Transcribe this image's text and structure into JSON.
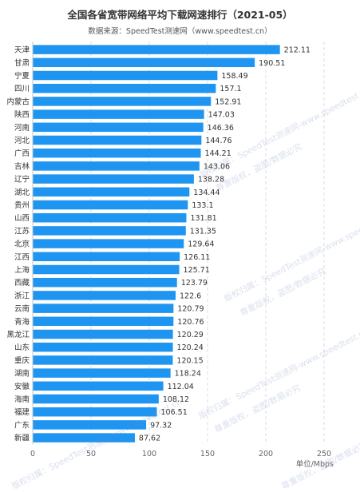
{
  "colors": {
    "bar": "#1f95f2",
    "grid": "#d9dde3",
    "text": "#333333",
    "axis": "#666666"
  },
  "watermark": {
    "line1": "版权归属：SpeedTest测速网-www.speedtest.cn",
    "line2": "尊重版权，盗图/数据必究"
  },
  "chart_data": {
    "type": "bar",
    "orientation": "horizontal",
    "title": "全国各省宽带网络平均下载网速排行（2021-05）",
    "subtitle": "数据来源：SpeedTest测速网（www.speedtest.cn）",
    "xlabel": "单位/Mbps",
    "ylabel": "",
    "xlim": [
      0,
      250
    ],
    "xticks": [
      0,
      50,
      100,
      150,
      200,
      250
    ],
    "grid": true,
    "categories": [
      "天津",
      "甘肃",
      "宁夏",
      "四川",
      "内蒙古",
      "陕西",
      "河南",
      "河北",
      "广西",
      "吉林",
      "辽宁",
      "湖北",
      "贵州",
      "山西",
      "江苏",
      "北京",
      "江西",
      "上海",
      "西藏",
      "浙江",
      "云南",
      "青海",
      "黑龙江",
      "山东",
      "重庆",
      "湖南",
      "安徽",
      "海南",
      "福建",
      "广东",
      "新疆"
    ],
    "values": [
      212.11,
      190.51,
      158.49,
      157.1,
      152.91,
      147.03,
      146.36,
      144.76,
      144.21,
      143.06,
      138.28,
      134.44,
      133.1,
      131.81,
      131.35,
      129.64,
      126.11,
      125.71,
      123.79,
      122.6,
      120.79,
      120.76,
      120.29,
      120.24,
      120.15,
      118.24,
      112.04,
      108.12,
      106.51,
      97.32,
      87.62
    ],
    "value_labels": [
      "212.11",
      "190.51",
      "158.49",
      "157.1",
      "152.91",
      "147.03",
      "146.36",
      "144.76",
      "144.21",
      "143.06",
      "138.28",
      "134.44",
      "133.1",
      "131.81",
      "131.35",
      "129.64",
      "126.11",
      "125.71",
      "123.79",
      "122.6",
      "120.79",
      "120.76",
      "120.29",
      "120.24",
      "120.15",
      "118.24",
      "112.04",
      "108.12",
      "106.51",
      "97.32",
      "87.62"
    ]
  }
}
